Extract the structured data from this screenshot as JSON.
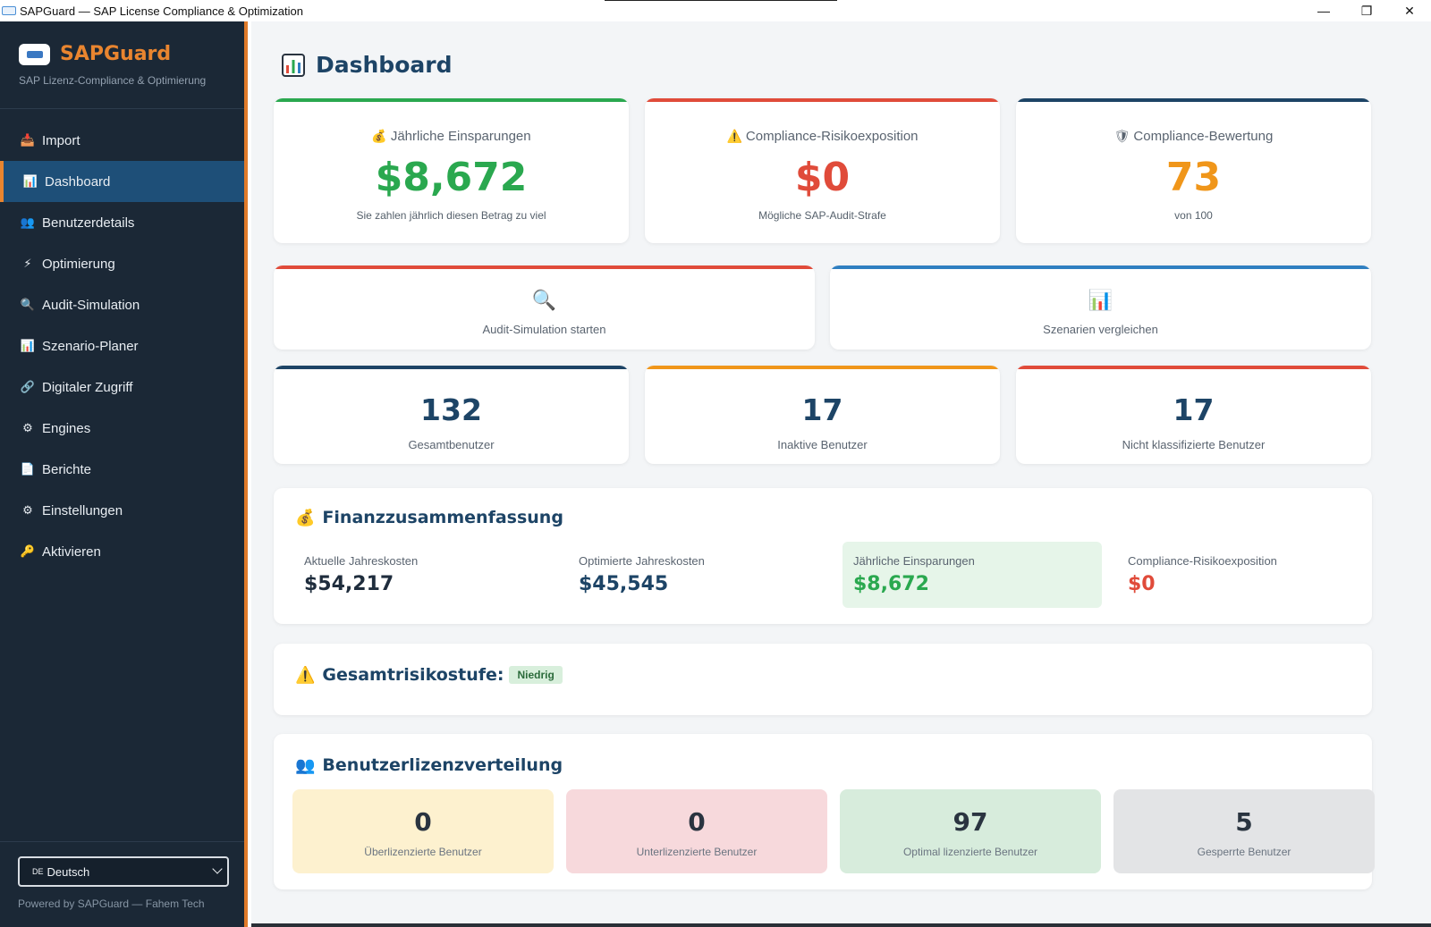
{
  "window": {
    "title": "SAPGuard — SAP License Compliance & Optimization",
    "minimize": "—",
    "maximize": "❐",
    "close": "✕"
  },
  "sidebar": {
    "brand": "SAPGuard",
    "tagline": "SAP Lizenz-Compliance & Optimierung",
    "items": [
      {
        "label": "Import",
        "icon": "import-icon",
        "glyph": "📥"
      },
      {
        "label": "Dashboard",
        "icon": "chart-icon",
        "glyph": "📊",
        "active": true
      },
      {
        "label": "Benutzerdetails",
        "icon": "users-icon",
        "glyph": "👥"
      },
      {
        "label": "Optimierung",
        "icon": "lightning-icon",
        "glyph": "⚡"
      },
      {
        "label": "Audit-Simulation",
        "icon": "magnifier-icon",
        "glyph": "🔍"
      },
      {
        "label": "Szenario-Planer",
        "icon": "chart-icon",
        "glyph": "📊"
      },
      {
        "label": "Digitaler Zugriff",
        "icon": "link-icon",
        "glyph": "🔗"
      },
      {
        "label": "Engines",
        "icon": "gear-icon",
        "glyph": "⚙"
      },
      {
        "label": "Berichte",
        "icon": "document-icon",
        "glyph": "📄"
      },
      {
        "label": "Einstellungen",
        "icon": "gear-icon",
        "glyph": "⚙"
      },
      {
        "label": "Aktivieren",
        "icon": "key-icon",
        "glyph": "🔑"
      }
    ],
    "language": {
      "flag": "DE",
      "value": "Deutsch"
    },
    "footer": "Powered by SAPGuard — Fahem Tech"
  },
  "page": {
    "title": "Dashboard"
  },
  "kpis": [
    {
      "label": "Jährliche Einsparungen",
      "icon": "money-bag-icon",
      "glyph": "💰",
      "value": "$8,672",
      "note": "Sie zahlen jährlich diesen Betrag zu viel",
      "color": "#2aa84f",
      "accent": "#2aa84f"
    },
    {
      "label": "Compliance-Risikoexposition",
      "icon": "warning-icon",
      "glyph": "⚠️",
      "value": "$0",
      "note": "Mögliche SAP-Audit-Strafe",
      "color": "#e04b3a",
      "accent": "#e04b3a"
    },
    {
      "label": "Compliance-Bewertung",
      "icon": "shield-icon",
      "glyph": "🛡",
      "value": "73",
      "note": "von 100",
      "color": "#f0961a",
      "accent": "#1d4466"
    }
  ],
  "actions": [
    {
      "label": "Audit-Simulation starten",
      "icon": "magnifier-icon",
      "glyph": "🔍",
      "accent": "#e04b3a"
    },
    {
      "label": "Szenarien vergleichen",
      "icon": "chart-icon",
      "glyph": "📊",
      "accent": "#2f7fc1"
    }
  ],
  "stats": [
    {
      "value": "132",
      "label": "Gesamtbenutzer",
      "accent": "#1d4466"
    },
    {
      "value": "17",
      "label": "Inaktive Benutzer",
      "accent": "#f0961a"
    },
    {
      "value": "17",
      "label": "Nicht klassifizierte Benutzer",
      "accent": "#e04b3a"
    }
  ],
  "finance": {
    "title": "Finanzzusammenfassung",
    "icon": "money-bag-icon",
    "items": [
      {
        "label": "Aktuelle Jahreskosten",
        "value": "$54,217",
        "color": "#1f2d3d"
      },
      {
        "label": "Optimierte Jahreskosten",
        "value": "$45,545",
        "color": "#1d4466"
      },
      {
        "label": "Jährliche Einsparungen",
        "value": "$8,672",
        "color": "#2aa84f",
        "highlight": "#e6f5e9"
      },
      {
        "label": "Compliance-Risikoexposition",
        "value": "$0",
        "color": "#e04b3a"
      }
    ]
  },
  "risk": {
    "title": "Gesamtrisikostufe:",
    "icon": "warning-icon",
    "level": "Niedrig"
  },
  "distribution": {
    "title": "Benutzerlizenzverteilung",
    "icon": "users-icon",
    "items": [
      {
        "value": "0",
        "label": "Überlizenzierte Benutzer",
        "bg": "#fdf1cf"
      },
      {
        "value": "0",
        "label": "Unterlizenzierte Benutzer",
        "bg": "#f7d9dc"
      },
      {
        "value": "97",
        "label": "Optimal lizenzierte Benutzer",
        "bg": "#d7ecdc"
      },
      {
        "value": "5",
        "label": "Gesperrte Benutzer",
        "bg": "#e3e4e6"
      }
    ]
  }
}
